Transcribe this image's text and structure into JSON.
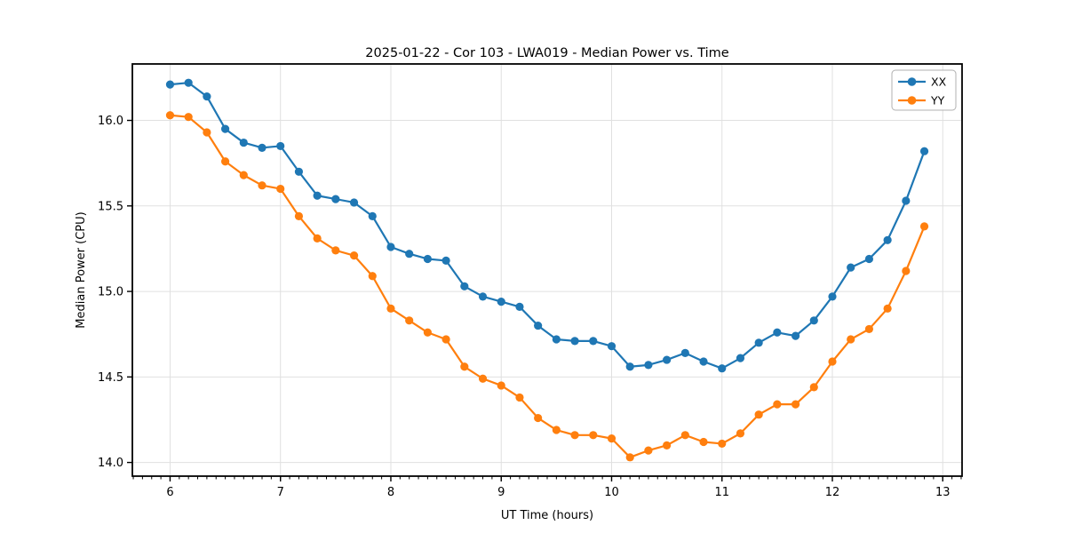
{
  "chart_data": {
    "type": "line",
    "title": "2025-01-22 - Cor 103 - LWA019 - Median Power vs. Time",
    "xlabel": "UT Time (hours)",
    "ylabel": "Median Power (CPU)",
    "xlim": [
      5.6583,
      13.175
    ],
    "ylim": [
      13.92,
      16.33
    ],
    "x_ticks": [
      6,
      7,
      8,
      9,
      10,
      11,
      12,
      13
    ],
    "x_tick_labels": [
      "6",
      "7",
      "8",
      "9",
      "10",
      "11",
      "12",
      "13"
    ],
    "x_minor_tick_step": 0.0833333,
    "y_ticks": [
      14.0,
      14.5,
      15.0,
      15.5,
      16.0
    ],
    "y_tick_labels": [
      "14.0",
      "14.5",
      "15.0",
      "15.5",
      "16.0"
    ],
    "grid": true,
    "grid_color": "#e0e0e0",
    "legend_position": "upper right",
    "x": [
      6.0,
      6.1667,
      6.3333,
      6.5,
      6.6667,
      6.8333,
      7.0,
      7.1667,
      7.3333,
      7.5,
      7.6667,
      7.8333,
      8.0,
      8.1667,
      8.3333,
      8.5,
      8.6667,
      8.8333,
      9.0,
      9.1667,
      9.3333,
      9.5,
      9.6667,
      9.8333,
      10.0,
      10.1667,
      10.3333,
      10.5,
      10.6667,
      10.8333,
      11.0,
      11.1667,
      11.3333,
      11.5,
      11.6667,
      11.8333,
      12.0,
      12.1667,
      12.3333,
      12.5,
      12.6667,
      12.8333
    ],
    "series": [
      {
        "name": "XX",
        "color": "#1f77b4",
        "values": [
          16.21,
          16.22,
          16.14,
          15.95,
          15.87,
          15.84,
          15.85,
          15.7,
          15.56,
          15.54,
          15.52,
          15.44,
          15.26,
          15.22,
          15.19,
          15.18,
          15.03,
          14.97,
          14.94,
          14.91,
          14.8,
          14.72,
          14.71,
          14.71,
          14.68,
          14.56,
          14.57,
          14.6,
          14.64,
          14.59,
          14.55,
          14.61,
          14.7,
          14.76,
          14.74,
          14.83,
          14.97,
          15.14,
          15.19,
          15.3,
          15.53,
          15.82
        ]
      },
      {
        "name": "YY",
        "color": "#ff7f0e",
        "values": [
          16.03,
          16.02,
          15.93,
          15.76,
          15.68,
          15.62,
          15.6,
          15.44,
          15.31,
          15.24,
          15.21,
          15.09,
          14.9,
          14.83,
          14.76,
          14.72,
          14.56,
          14.49,
          14.45,
          14.38,
          14.26,
          14.19,
          14.16,
          14.16,
          14.14,
          14.03,
          14.07,
          14.1,
          14.16,
          14.12,
          14.11,
          14.17,
          14.28,
          14.34,
          14.34,
          14.44,
          14.59,
          14.72,
          14.78,
          14.9,
          15.12,
          15.38
        ]
      }
    ]
  }
}
